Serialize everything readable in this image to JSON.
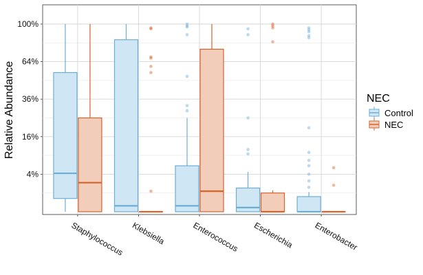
{
  "chart_data": {
    "type": "boxplot",
    "title": "",
    "xlabel": "",
    "ylabel": "Relative Abundance",
    "y_scale": "sqrt",
    "y_ticks": [
      {
        "value": 0.04,
        "label": "4%"
      },
      {
        "value": 0.16,
        "label": "16%"
      },
      {
        "value": 0.36,
        "label": "36%"
      },
      {
        "value": 0.64,
        "label": "64%"
      },
      {
        "value": 1.0,
        "label": "100%"
      }
    ],
    "ylim": [
      0,
      1.15
    ],
    "grid": true,
    "legend": {
      "title": "NEC",
      "position": "right"
    },
    "categories": [
      "Staphylococcus",
      "Klebsiella",
      "Enterococcus",
      "Escherichia",
      "Enterobacter"
    ],
    "series": [
      {
        "name": "Control",
        "color": "#6BAED6",
        "fill": "#CFE6F5",
        "boxes": [
          {
            "whisker_low": 0.0,
            "q1": 0.005,
            "median": 0.042,
            "q3": 0.55,
            "whisker_high": 1.0,
            "outliers": []
          },
          {
            "whisker_low": 0.0,
            "q1": 0.0,
            "median": 0.001,
            "q3": 0.84,
            "whisker_high": 1.0,
            "outliers": []
          },
          {
            "whisker_low": 0.0,
            "q1": 0.0,
            "median": 0.001,
            "q3": 0.06,
            "whisker_high": 0.25,
            "outliers": [
              0.98,
              1.0,
              0.97,
              0.89,
              0.52,
              0.32,
              0.29
            ]
          },
          {
            "whisker_low": 0.0,
            "q1": 0.0,
            "median": 0.0005,
            "q3": 0.016,
            "whisker_high": 0.045,
            "outliers": [
              0.95,
              0.89,
              0.25,
              0.11,
              0.095
            ]
          },
          {
            "whisker_low": 0.0,
            "q1": 0.0,
            "median": 0.0,
            "q3": 0.0065,
            "whisker_high": 0.011,
            "outliers": [
              0.96,
              0.94,
              0.92,
              0.88,
              0.86,
              0.2,
              0.1,
              0.075,
              0.06,
              0.04,
              0.027,
              0.017
            ]
          }
        ]
      },
      {
        "name": "NEC",
        "color": "#D9622B",
        "fill": "#F2CDB9",
        "boxes": [
          {
            "whisker_low": 0.0,
            "q1": 0.0,
            "median": 0.024,
            "q3": 0.25,
            "whisker_high": 1.0,
            "outliers": []
          },
          {
            "whisker_low": 0.0,
            "q1": 0.0,
            "median": 0.0,
            "q3": 0.0,
            "whisker_high": 0.0,
            "outliers": [
              0.95,
              0.96,
              0.68,
              0.67,
              0.6,
              0.55,
              0.012
            ]
          },
          {
            "whisker_low": 0.0,
            "q1": 0.0,
            "median": 0.012,
            "q3": 0.75,
            "whisker_high": 1.0,
            "outliers": []
          },
          {
            "whisker_low": 0.0,
            "q1": 0.0,
            "median": 0.0,
            "q3": 0.01,
            "whisker_high": 0.013,
            "outliers": [
              1.0,
              0.98,
              0.96,
              0.82
            ]
          },
          {
            "whisker_low": 0.0,
            "q1": 0.0,
            "median": 0.0,
            "q3": 0.0,
            "whisker_high": 0.0,
            "outliers": [
              0.055,
              0.02
            ]
          }
        ]
      }
    ]
  }
}
